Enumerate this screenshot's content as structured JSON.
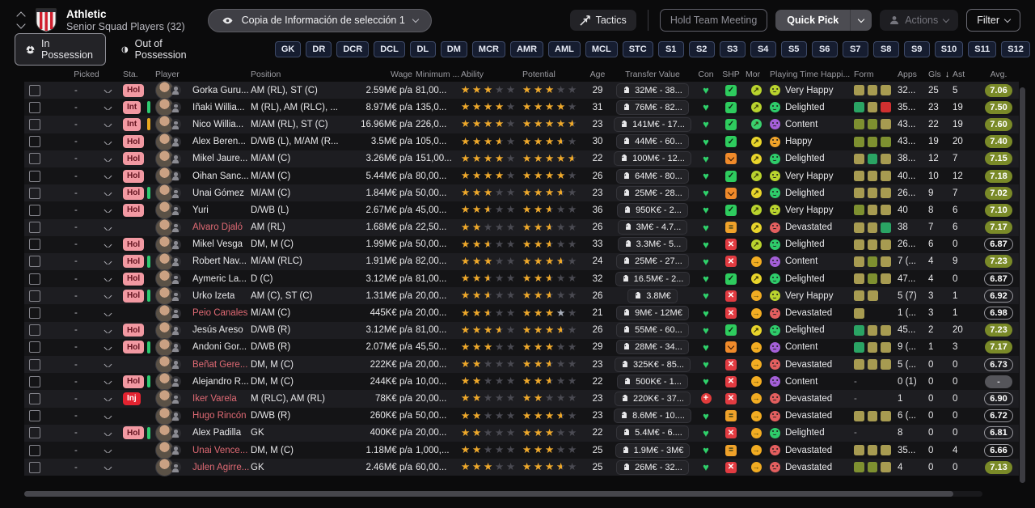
{
  "header": {
    "club": "Athletic",
    "subtitle": "Senior Squad Players (32)",
    "view_dropdown": "Copia de Información de selección 1",
    "tactics_label": "Tactics",
    "hold_meeting_label": "Hold Team Meeting",
    "quick_pick_label": "Quick Pick",
    "actions_label": "Actions",
    "filter_label": "Filter"
  },
  "tabs": {
    "in_possession": "In Possession",
    "out_of_possession": "Out of Possession"
  },
  "position_filters": [
    "GK",
    "DR",
    "DCR",
    "DCL",
    "DL",
    "DM",
    "MCR",
    "AMR",
    "AML",
    "MCL",
    "STC",
    "S1",
    "S2",
    "S3",
    "S4",
    "S5",
    "S6",
    "S7",
    "S8",
    "S9",
    "S10",
    "S11",
    "S12"
  ],
  "columns": [
    "Picked",
    "Sta.",
    "Player",
    "Position",
    "Wage",
    "Minimum ...",
    "Ability",
    "Potential",
    "Age",
    "Transfer Value",
    "Con",
    "SHP",
    "Mor",
    "Playing Time Happi...",
    "Form",
    "Apps",
    "Gls",
    "Ast",
    "Avg."
  ],
  "sort": {
    "column": "Gls",
    "direction": "desc",
    "icon": "arrow-down"
  },
  "colors": {
    "accent_gold_star": "#f0a929",
    "avg_good": "#7a8a28",
    "badge_hol": "#f299a2",
    "badge_inj": "#e32330",
    "form_khaki": "#a79b51",
    "form_olive": "#7e9030",
    "form_teal": "#2aa464",
    "form_red": "#d03030",
    "con_fit": "#2fd06a"
  },
  "rows": [
    {
      "picked": "-",
      "sta": "Hol",
      "sta_type": "hol",
      "bar": "none",
      "name": "Gorka Guru...",
      "name_red": false,
      "position": "AM (RL), ST (C)",
      "wage": "2.59M€ p/a",
      "min_fee": "81,00...",
      "ability": 3,
      "potential": 3,
      "potential_silver": false,
      "age": "29",
      "transfer_value": "32M€ - 38...",
      "con": "fit",
      "shp": "check",
      "mor": "yg",
      "pth": "Very Happy",
      "pth_type": "vh",
      "form": [
        "k",
        "k",
        "k"
      ],
      "apps": "32...",
      "gls": "25",
      "ast": "5",
      "avg": "7.06",
      "avg_style": "good"
    },
    {
      "picked": "-",
      "sta": "Int",
      "sta_type": "int",
      "bar": "green",
      "name": "Iñaki Willia...",
      "name_red": false,
      "position": "M (RL), AM (RLC), ...",
      "wage": "8.97M€ p/a",
      "min_fee": "135,0...",
      "ability": 4,
      "potential": 4,
      "potential_silver": false,
      "age": "31",
      "transfer_value": "76M€ - 82...",
      "con": "fit",
      "shp": "check",
      "mor": "yg",
      "pth": "Delighted",
      "pth_type": "de",
      "form": [
        "t",
        "k",
        "r"
      ],
      "apps": "35...",
      "gls": "23",
      "ast": "19",
      "avg": "7.50",
      "avg_style": "good"
    },
    {
      "picked": "-",
      "sta": "Int",
      "sta_type": "int",
      "bar": "yellow",
      "name": "Nico Willia...",
      "name_red": false,
      "position": "M/AM (RL), ST (C)",
      "wage": "16.96M€ p/a",
      "min_fee": "226,0...",
      "ability": 4,
      "potential": 4.5,
      "potential_silver": false,
      "age": "23",
      "transfer_value": "141M€ - 17...",
      "con": "fit",
      "shp": "check",
      "mor": "g",
      "pth": "Content",
      "pth_type": "co",
      "form": [
        "o",
        "o",
        "k"
      ],
      "apps": "43...",
      "gls": "22",
      "ast": "19",
      "avg": "7.60",
      "avg_style": "good"
    },
    {
      "picked": "-",
      "sta": "Hol",
      "sta_type": "hol",
      "bar": "none",
      "name": "Álex Beren...",
      "name_red": false,
      "position": "D/WB (L), M/AM (R...",
      "wage": "3.5M€ p/a",
      "min_fee": "105,0...",
      "ability": 3.5,
      "potential": 3.5,
      "potential_silver": false,
      "age": "30",
      "transfer_value": "44M€ - 60...",
      "con": "fit",
      "shp": "check",
      "mor": "y",
      "pth": "Happy",
      "pth_type": "ha",
      "form": [
        "o",
        "o",
        "o"
      ],
      "apps": "43...",
      "gls": "19",
      "ast": "20",
      "avg": "7.40",
      "avg_style": "good"
    },
    {
      "picked": "-",
      "sta": "Hol",
      "sta_type": "hol",
      "bar": "none",
      "name": "Mikel Jaure...",
      "name_red": false,
      "position": "M/AM (C)",
      "wage": "3.26M€ p/a",
      "min_fee": "151,00...",
      "ability": 4,
      "potential": 4.5,
      "potential_silver": false,
      "age": "22",
      "transfer_value": "100M€ - 12...",
      "con": "fit",
      "shp": "down",
      "mor": "y",
      "pth": "Delighted",
      "pth_type": "de",
      "form": [
        "k",
        "t",
        "k"
      ],
      "apps": "38...",
      "gls": "12",
      "ast": "7",
      "avg": "7.15",
      "avg_style": "good"
    },
    {
      "picked": "-",
      "sta": "Hol",
      "sta_type": "hol",
      "bar": "none",
      "name": "Oihan Sanc...",
      "name_red": false,
      "position": "M/AM (C)",
      "wage": "5.44M€ p/a",
      "min_fee": "80,00...",
      "ability": 4,
      "potential": 4,
      "potential_silver": false,
      "age": "26",
      "transfer_value": "64M€ - 80...",
      "con": "fit",
      "shp": "check",
      "mor": "yg",
      "pth": "Very Happy",
      "pth_type": "vh",
      "form": [
        "k",
        "k",
        "k"
      ],
      "apps": "40...",
      "gls": "10",
      "ast": "12",
      "avg": "7.18",
      "avg_style": "good"
    },
    {
      "picked": "-",
      "sta": "Hol",
      "sta_type": "hol",
      "bar": "green",
      "name": "Unai Gómez",
      "name_red": false,
      "position": "M/AM (C)",
      "wage": "1.84M€ p/a",
      "min_fee": "50,00...",
      "ability": 3,
      "potential": 3.5,
      "potential_silver": false,
      "age": "23",
      "transfer_value": "25M€ - 28...",
      "con": "fit",
      "shp": "down",
      "mor": "y",
      "pth": "Delighted",
      "pth_type": "de",
      "form": [
        "k",
        "k",
        "k"
      ],
      "apps": "26...",
      "gls": "9",
      "ast": "7",
      "avg": "7.02",
      "avg_style": "good"
    },
    {
      "picked": "-",
      "sta": "Hol",
      "sta_type": "hol",
      "bar": "none",
      "name": "Yuri",
      "name_red": false,
      "position": "D/WB (L)",
      "wage": "2.67M€ p/a",
      "min_fee": "45,00...",
      "ability": 2.5,
      "potential": 2.5,
      "potential_silver": false,
      "age": "36",
      "transfer_value": "950K€ - 2...",
      "con": "fit",
      "shp": "check",
      "mor": "yg",
      "pth": "Very Happy",
      "pth_type": "vh",
      "form": [
        "o",
        "k",
        "k"
      ],
      "apps": "40",
      "gls": "8",
      "ast": "6",
      "avg": "7.10",
      "avg_style": "good"
    },
    {
      "picked": "-",
      "sta": "",
      "sta_type": "none",
      "bar": "none",
      "name": "Álvaro Djaló",
      "name_red": true,
      "position": "AM (RL)",
      "wage": "1.68M€ p/a",
      "min_fee": "22,50...",
      "ability": 2,
      "potential": 2.5,
      "potential_silver": false,
      "age": "26",
      "transfer_value": "3M€ - 4.7...",
      "con": "fit",
      "shp": "equals",
      "mor": "y",
      "pth": "Devastated",
      "pth_type": "dv",
      "form": [
        "k",
        "k",
        "t"
      ],
      "apps": "38",
      "gls": "7",
      "ast": "6",
      "avg": "7.17",
      "avg_style": "good"
    },
    {
      "picked": "-",
      "sta": "Hol",
      "sta_type": "hol",
      "bar": "none",
      "name": "Mikel Vesga",
      "name_red": false,
      "position": "DM, M (C)",
      "wage": "1.99M€ p/a",
      "min_fee": "50,00...",
      "ability": 2.5,
      "potential": 2.5,
      "potential_silver": false,
      "age": "33",
      "transfer_value": "3.3M€ - 5...",
      "con": "fit",
      "shp": "x",
      "mor": "yg",
      "pth": "Delighted",
      "pth_type": "de",
      "form": [
        "k",
        "k",
        "k"
      ],
      "apps": "26...",
      "gls": "6",
      "ast": "0",
      "avg": "6.87",
      "avg_style": "plain"
    },
    {
      "picked": "-",
      "sta": "Hol",
      "sta_type": "hol",
      "bar": "green",
      "name": "Robert Nav...",
      "name_red": false,
      "position": "M/AM (RLC)",
      "wage": "1.91M€ p/a",
      "min_fee": "82,00...",
      "ability": 3,
      "potential": 3.5,
      "potential_silver": false,
      "age": "24",
      "transfer_value": "25M€ - 27...",
      "con": "fit",
      "shp": "x",
      "mor": "o",
      "pth": "Content",
      "pth_type": "co",
      "form": [
        "k",
        "o",
        "k"
      ],
      "apps": "7 (...",
      "gls": "4",
      "ast": "9",
      "avg": "7.23",
      "avg_style": "good"
    },
    {
      "picked": "-",
      "sta": "Hol",
      "sta_type": "hol",
      "bar": "none",
      "name": "Aymeric La...",
      "name_red": false,
      "position": "D (C)",
      "wage": "3.12M€ p/a",
      "min_fee": "81,00...",
      "ability": 2.5,
      "potential": 2.5,
      "potential_silver": false,
      "age": "32",
      "transfer_value": "16.5M€ - 2...",
      "con": "fit",
      "shp": "check",
      "mor": "y",
      "pth": "Delighted",
      "pth_type": "de",
      "form": [
        "k",
        "o",
        "k"
      ],
      "apps": "47...",
      "gls": "4",
      "ast": "0",
      "avg": "6.87",
      "avg_style": "plain"
    },
    {
      "picked": "-",
      "sta": "Hol",
      "sta_type": "hol",
      "bar": "green",
      "name": "Urko Izeta",
      "name_red": false,
      "position": "AM (C), ST (C)",
      "wage": "1.31M€ p/a",
      "min_fee": "20,00...",
      "ability": 2.5,
      "potential": 2.5,
      "potential_silver": false,
      "age": "26",
      "transfer_value": "3.8M€",
      "con": "fit",
      "shp": "x",
      "mor": "o",
      "pth": "Very Happy",
      "pth_type": "vh",
      "form": [
        "k",
        "k"
      ],
      "apps": "5 (7)",
      "gls": "3",
      "ast": "1",
      "avg": "6.92",
      "avg_style": "plain"
    },
    {
      "picked": "-",
      "sta": "",
      "sta_type": "none",
      "bar": "none",
      "name": "Peio Canales",
      "name_red": true,
      "position": "M/AM (C)",
      "wage": "445K€ p/a",
      "min_fee": "20,00...",
      "ability": 2.5,
      "potential": 4,
      "potential_silver": true,
      "age": "21",
      "transfer_value": "9M€ - 12M€",
      "con": "fit",
      "shp": "x",
      "mor": "o",
      "pth": "Devastated",
      "pth_type": "dv",
      "form": [
        "k"
      ],
      "apps": "1 (...",
      "gls": "3",
      "ast": "1",
      "avg": "6.98",
      "avg_style": "plain"
    },
    {
      "picked": "-",
      "sta": "Hol",
      "sta_type": "hol",
      "bar": "none",
      "name": "Jesús Areso",
      "name_red": false,
      "position": "D/WB (R)",
      "wage": "3.12M€ p/a",
      "min_fee": "81,00...",
      "ability": 3.5,
      "potential": 3.5,
      "potential_silver": false,
      "age": "26",
      "transfer_value": "55M€ - 60...",
      "con": "fit",
      "shp": "check",
      "mor": "y",
      "pth": "Delighted",
      "pth_type": "de",
      "form": [
        "t",
        "k",
        "k"
      ],
      "apps": "45...",
      "gls": "2",
      "ast": "20",
      "avg": "7.23",
      "avg_style": "good"
    },
    {
      "picked": "-",
      "sta": "Hol",
      "sta_type": "hol",
      "bar": "green",
      "name": "Andoni Gor...",
      "name_red": false,
      "position": "D/WB (R)",
      "wage": "2.07M€ p/a",
      "min_fee": "45,50...",
      "ability": 3,
      "potential": 3,
      "potential_silver": false,
      "age": "29",
      "transfer_value": "28M€ - 34...",
      "con": "fit",
      "shp": "down",
      "mor": "o",
      "pth": "Content",
      "pth_type": "co",
      "form": [
        "t",
        "k",
        "k"
      ],
      "apps": "9 (...",
      "gls": "1",
      "ast": "3",
      "avg": "7.17",
      "avg_style": "good"
    },
    {
      "picked": "-",
      "sta": "",
      "sta_type": "none",
      "bar": "none",
      "name": "Beñat Gere...",
      "name_red": true,
      "position": "DM, M (C)",
      "wage": "222K€ p/a",
      "min_fee": "20,00...",
      "ability": 2,
      "potential": 2.5,
      "potential_silver": false,
      "age": "23",
      "transfer_value": "325K€ - 85...",
      "con": "fit",
      "shp": "x",
      "mor": "o",
      "pth": "Devastated",
      "pth_type": "dv",
      "form": [
        "k",
        "k",
        "k"
      ],
      "apps": "5 (...",
      "gls": "0",
      "ast": "0",
      "avg": "6.73",
      "avg_style": "plain"
    },
    {
      "picked": "-",
      "sta": "Hol",
      "sta_type": "hol",
      "bar": "green",
      "name": "Alejandro R...",
      "name_red": false,
      "position": "DM, M (C)",
      "wage": "244K€ p/a",
      "min_fee": "10,00...",
      "ability": 2,
      "potential": 2.5,
      "potential_silver": false,
      "age": "22",
      "transfer_value": "500K€ - 1...",
      "con": "fit",
      "shp": "x",
      "mor": "o",
      "pth": "Content",
      "pth_type": "co",
      "form": [],
      "apps": "0 (1)",
      "gls": "0",
      "ast": "0",
      "avg": "-",
      "avg_style": "none"
    },
    {
      "picked": "-",
      "sta": "Inj",
      "sta_type": "inj",
      "bar": "none",
      "name": "Iker Varela",
      "name_red": true,
      "position": "M (RLC), AM (RL)",
      "wage": "78K€ p/a",
      "min_fee": "20,00...",
      "ability": 2,
      "potential": 2,
      "potential_silver": false,
      "age": "23",
      "transfer_value": "220K€ - 37...",
      "con": "injured",
      "shp": "x",
      "mor": "o",
      "pth": "Devastated",
      "pth_type": "dv",
      "form": [],
      "apps": "1",
      "gls": "0",
      "ast": "0",
      "avg": "6.90",
      "avg_style": "plain"
    },
    {
      "picked": "-",
      "sta": "",
      "sta_type": "none",
      "bar": "none",
      "name": "Hugo Rincón",
      "name_red": true,
      "position": "D/WB (R)",
      "wage": "260K€ p/a",
      "min_fee": "50,00...",
      "ability": 2,
      "potential": 3.5,
      "potential_silver": false,
      "age": "23",
      "transfer_value": "8.6M€ - 10....",
      "con": "fit",
      "shp": "equals",
      "mor": "o",
      "pth": "Devastated",
      "pth_type": "dv",
      "form": [
        "k",
        "k",
        "k"
      ],
      "apps": "6 (...",
      "gls": "0",
      "ast": "0",
      "avg": "6.72",
      "avg_style": "plain"
    },
    {
      "picked": "-",
      "sta": "Hol",
      "sta_type": "hol",
      "bar": "green",
      "name": "Álex Padilla",
      "name_red": false,
      "position": "GK",
      "wage": "400K€ p/a",
      "min_fee": "20,00...",
      "ability": 2,
      "potential": 3,
      "potential_silver": false,
      "age": "22",
      "transfer_value": "5.4M€ - 6....",
      "con": "fit",
      "shp": "x",
      "mor": "o",
      "pth": "Delighted",
      "pth_type": "de",
      "form": [],
      "apps": "8",
      "gls": "0",
      "ast": "0",
      "avg": "6.81",
      "avg_style": "plain"
    },
    {
      "picked": "-",
      "sta": "",
      "sta_type": "none",
      "bar": "none",
      "name": "Unai Vence...",
      "name_red": true,
      "position": "DM, M (C)",
      "wage": "1.18M€ p/a",
      "min_fee": "1,000,...",
      "ability": 2,
      "potential": 3,
      "potential_silver": false,
      "age": "25",
      "transfer_value": "1.9M€ - 3M€",
      "con": "fit",
      "shp": "equals",
      "mor": "o",
      "pth": "Devastated",
      "pth_type": "dv",
      "form": [
        "k",
        "k",
        "k"
      ],
      "apps": "35...",
      "gls": "0",
      "ast": "4",
      "avg": "6.66",
      "avg_style": "plain"
    },
    {
      "picked": "-",
      "sta": "",
      "sta_type": "none",
      "bar": "none",
      "name": "Julen Agirre...",
      "name_red": true,
      "position": "GK",
      "wage": "2.46M€ p/a",
      "min_fee": "60,00...",
      "ability": 3,
      "potential": 3.5,
      "potential_silver": false,
      "age": "25",
      "transfer_value": "26M€ - 32...",
      "con": "fit",
      "shp": "x",
      "mor": "o",
      "pth": "Devastated",
      "pth_type": "dv",
      "form": [
        "o",
        "o",
        "k"
      ],
      "apps": "4",
      "gls": "0",
      "ast": "0",
      "avg": "7.13",
      "avg_style": "good"
    }
  ]
}
